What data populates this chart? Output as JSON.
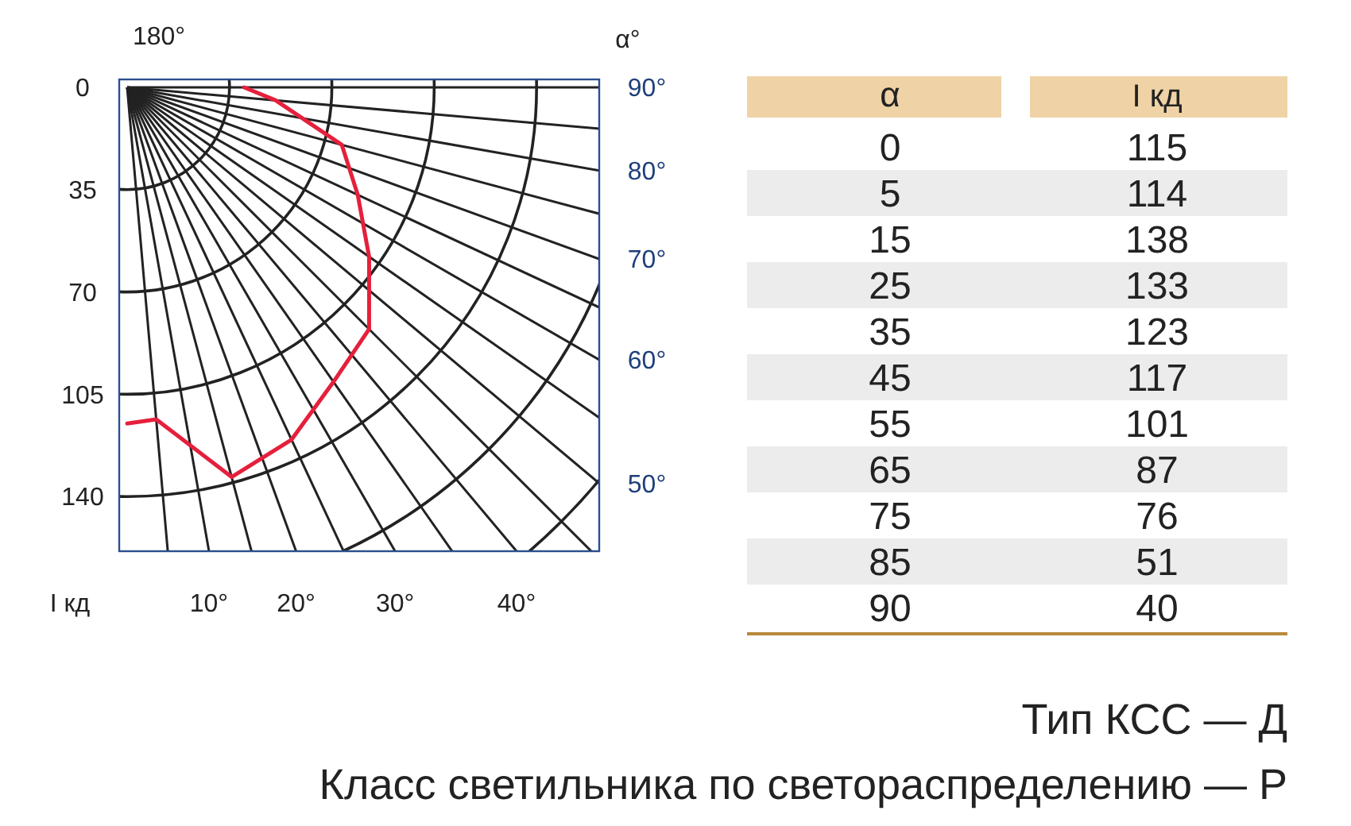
{
  "chart_data": {
    "type": "other",
    "xlabel": "α°",
    "ylabel": "I кд",
    "categories": [
      "0",
      "5",
      "15",
      "25",
      "35",
      "45",
      "55",
      "65",
      "75",
      "85",
      "90"
    ],
    "series": [
      {
        "type": "line",
        "color": "#e5203c",
        "values": [
          115,
          114,
          138,
          133,
          123,
          117,
          101,
          87,
          76,
          51,
          40
        ]
      }
    ],
    "data_labels": true,
    "annotations": [
      "180°",
      "α",
      "I кд",
      "Тип КСС — Д",
      "Класс светильника по светораспределению — Р",
      "0",
      "35",
      "70",
      "105",
      "140",
      "10°",
      "20°",
      "30°",
      "40°",
      "50°",
      "60°",
      "70°",
      "80°",
      "90°"
    ]
  }
}
